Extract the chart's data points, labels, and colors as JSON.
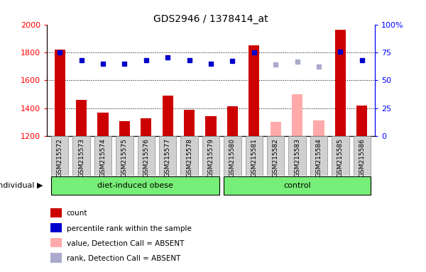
{
  "title": "GDS2946 / 1378414_at",
  "samples": [
    "GSM215572",
    "GSM215573",
    "GSM215574",
    "GSM215575",
    "GSM215576",
    "GSM215577",
    "GSM215578",
    "GSM215579",
    "GSM215580",
    "GSM215581",
    "GSM215582",
    "GSM215583",
    "GSM215584",
    "GSM215585",
    "GSM215586"
  ],
  "count_values": [
    1820,
    1460,
    1370,
    1308,
    1325,
    1490,
    1388,
    1340,
    1415,
    1850,
    null,
    null,
    null,
    1960,
    1420
  ],
  "count_absent": [
    null,
    null,
    null,
    null,
    null,
    null,
    null,
    null,
    null,
    null,
    1300,
    1500,
    1310,
    null,
    null
  ],
  "rank_values": [
    1800,
    1745,
    1720,
    1718,
    1742,
    1765,
    1742,
    1718,
    1740,
    1800,
    null,
    null,
    null,
    1805,
    1742
  ],
  "rank_absent": [
    null,
    null,
    null,
    null,
    null,
    null,
    null,
    null,
    null,
    null,
    1715,
    1735,
    1700,
    null,
    null
  ],
  "ylim": [
    1200,
    2000
  ],
  "yticks": [
    1200,
    1400,
    1600,
    1800,
    2000
  ],
  "right_yticks_pct": [
    0,
    25,
    50,
    75,
    100
  ],
  "groups": [
    {
      "label": "diet-induced obese",
      "start": 0,
      "end": 7
    },
    {
      "label": "control",
      "start": 8,
      "end": 14
    }
  ],
  "bar_color": "#cc0000",
  "bar_absent_color": "#ffaaaa",
  "rank_color": "#0000cc",
  "rank_absent_color": "#aaaacc",
  "grid_color": "#000000",
  "plot_bg": "#ffffff",
  "tick_bg": "#d0d0d0",
  "group_bg": "#77ee77",
  "bar_width": 0.5
}
